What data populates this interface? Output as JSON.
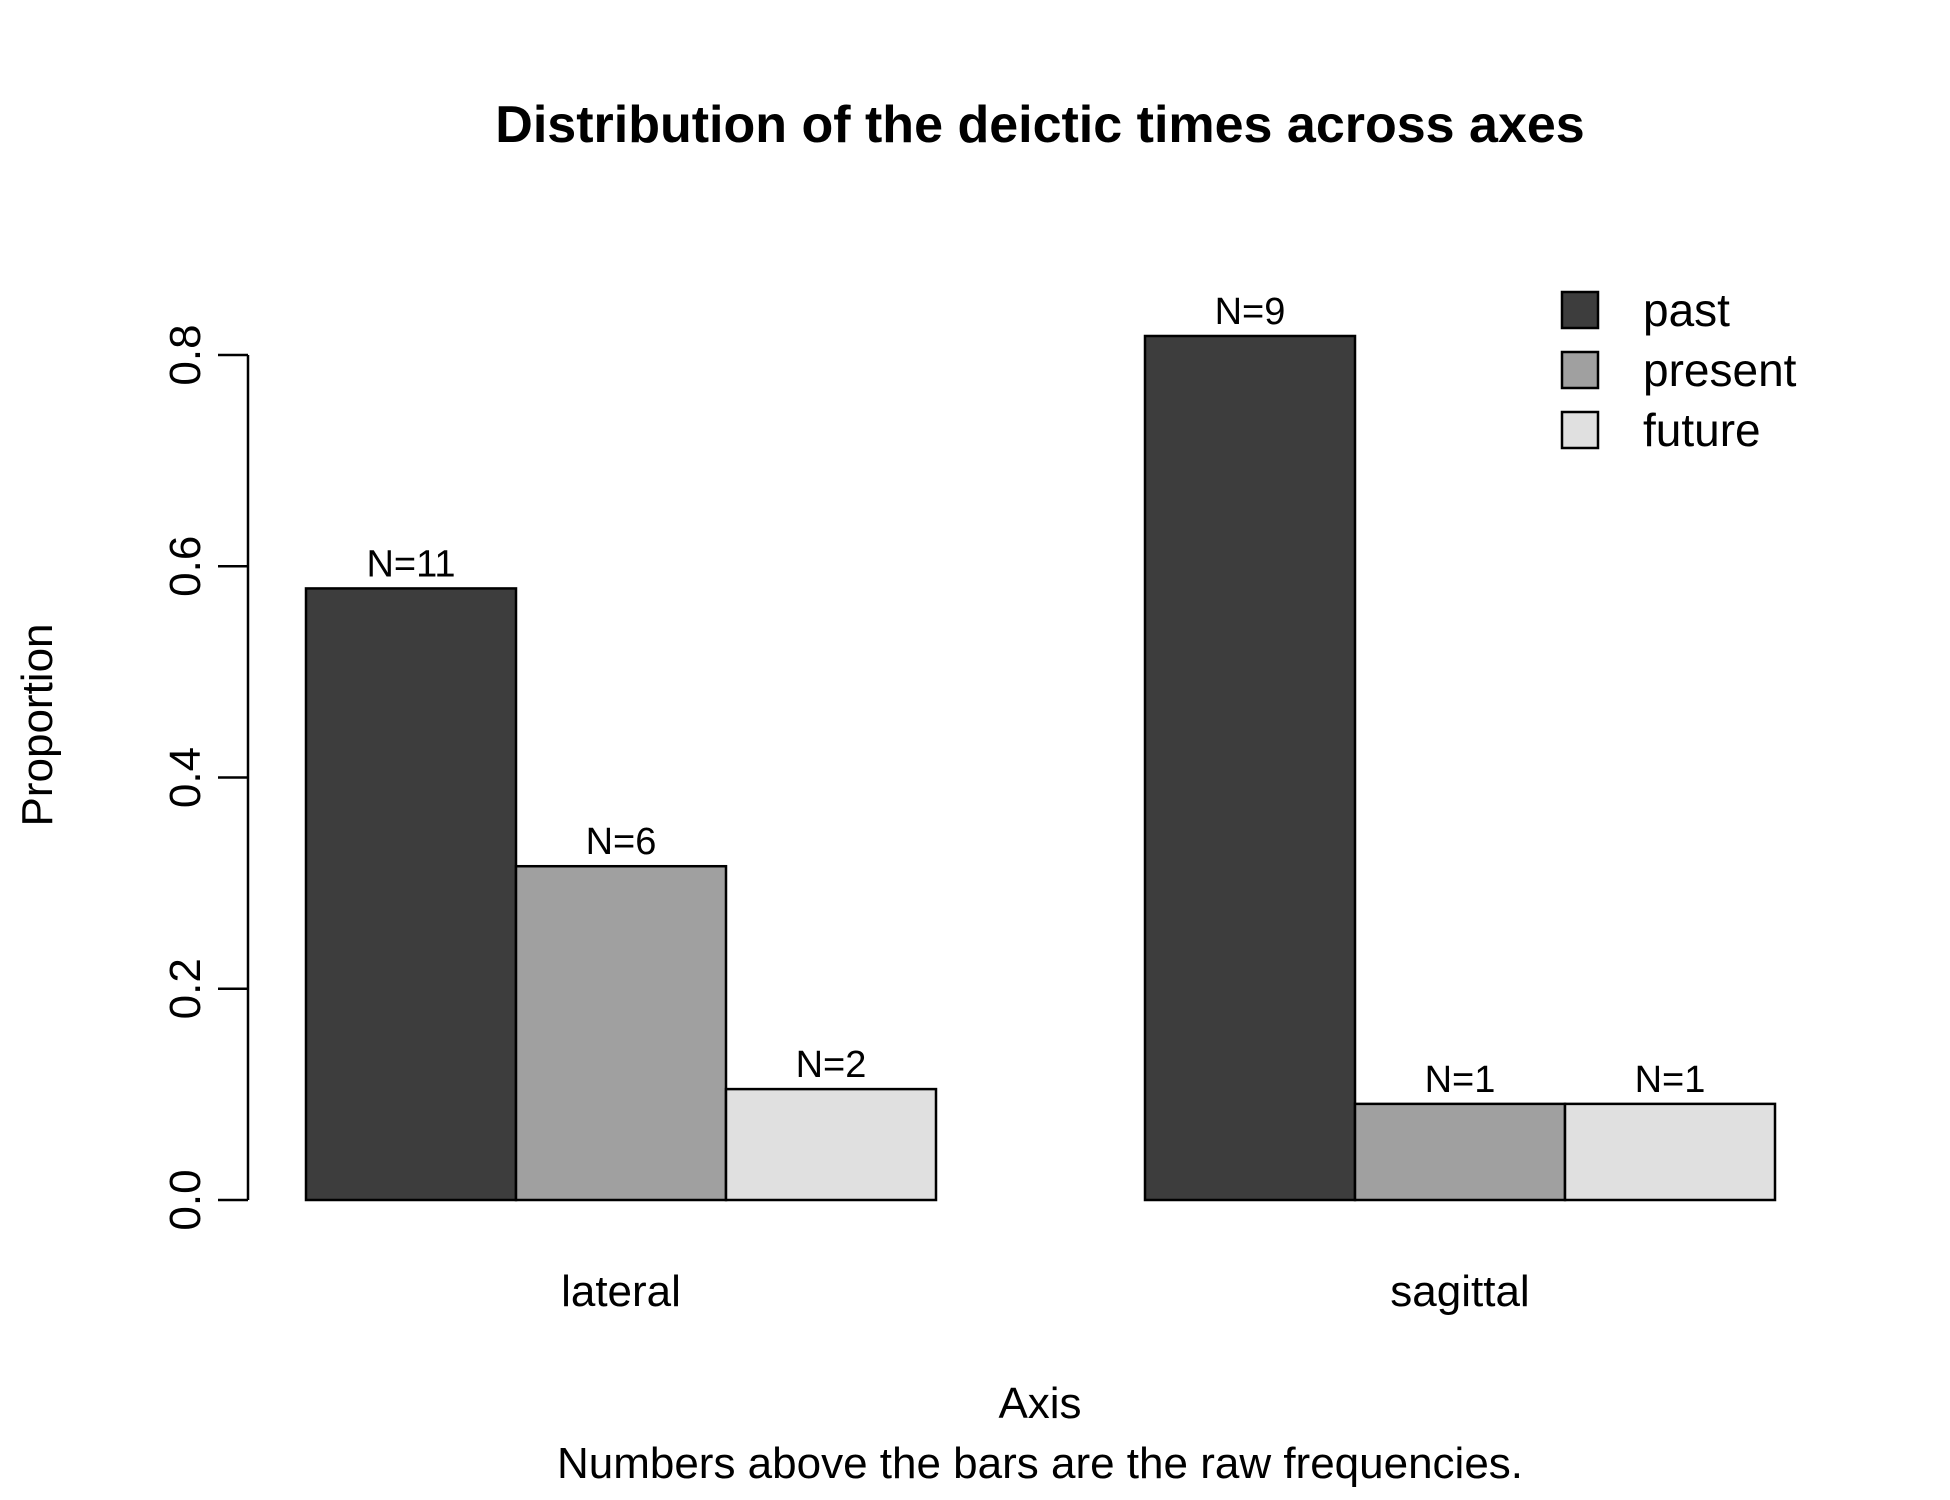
{
  "chart_data": {
    "type": "bar",
    "title": "Distribution of the deictic times across axes",
    "xlabel": "Axis",
    "ylabel": "Proportion",
    "caption": "Numbers above the bars are the raw frequencies.",
    "categories": [
      "lateral",
      "sagittal"
    ],
    "series": [
      {
        "name": "past",
        "color": "#3d3d3d",
        "values": [
          0.579,
          0.818
        ],
        "labels": [
          "N=11",
          "N=9"
        ]
      },
      {
        "name": "present",
        "color": "#a0a0a0",
        "values": [
          0.316,
          0.091
        ],
        "labels": [
          "N=6",
          "N=1"
        ]
      },
      {
        "name": "future",
        "color": "#e0e0e0",
        "values": [
          0.105,
          0.091
        ],
        "labels": [
          "N=2",
          "N=1"
        ]
      }
    ],
    "ylim": [
      0,
      0.8
    ],
    "yticks": [
      "0.0",
      "0.2",
      "0.4",
      "0.6",
      "0.8"
    ],
    "grid": false,
    "legend_position": "top-right"
  }
}
